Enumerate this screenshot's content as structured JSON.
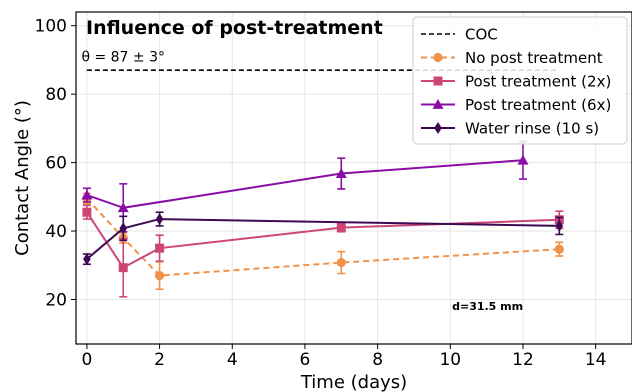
{
  "chart_data": {
    "type": "line",
    "title": "Influence of post-treatment",
    "xlabel": "Time (days)",
    "ylabel": "Contact Angle (°)",
    "xlim": [
      -0.3,
      15
    ],
    "ylim": [
      7,
      104
    ],
    "xticks": [
      0,
      2,
      4,
      6,
      8,
      10,
      12,
      14
    ],
    "yticks": [
      20,
      40,
      60,
      80,
      100
    ],
    "grid": true,
    "legend_position": "top-right",
    "annotations": [
      {
        "text": "θ = 87 ± 3°",
        "x": -0.15,
        "y": 89.5
      },
      {
        "text": "d=31.5 mm",
        "x": 10.05,
        "y": 17
      }
    ],
    "reference_line": {
      "name": "COC",
      "y": 87,
      "x": [
        0,
        13
      ],
      "color": "#000000",
      "dash": true
    },
    "series": [
      {
        "name": "No post treatment",
        "color": "#f0924a",
        "marker": "circle",
        "dashed": true,
        "x": [
          0,
          1,
          2,
          7,
          13
        ],
        "y": [
          49.5,
          38,
          27,
          30.8,
          34.7
        ],
        "err": [
          1.5,
          1.5,
          4,
          3.2,
          2
        ]
      },
      {
        "name": "Post treatment (2x)",
        "color": "#cc4778",
        "marker": "square",
        "dashed": false,
        "x": [
          0,
          1,
          2,
          7,
          13
        ],
        "y": [
          45.5,
          29.3,
          35,
          41,
          43.3
        ],
        "err": [
          2,
          8.5,
          3.8,
          1.2,
          2.5
        ]
      },
      {
        "name": "Post treatment (6x)",
        "color": "#8a0da5",
        "marker": "triangle",
        "dashed": false,
        "x": [
          0,
          1,
          7,
          12
        ],
        "y": [
          50.5,
          46.8,
          56.8,
          60.7
        ],
        "err": [
          2,
          7,
          4.5,
          5.5
        ]
      },
      {
        "name": "Water rinse (10 s)",
        "color": "#3d0a52",
        "marker": "diamond",
        "dashed": false,
        "x": [
          0,
          1,
          2,
          13
        ],
        "y": [
          31.8,
          40.8,
          43.5,
          41.5
        ],
        "err": [
          1.5,
          3.5,
          2,
          2.5
        ]
      }
    ]
  }
}
